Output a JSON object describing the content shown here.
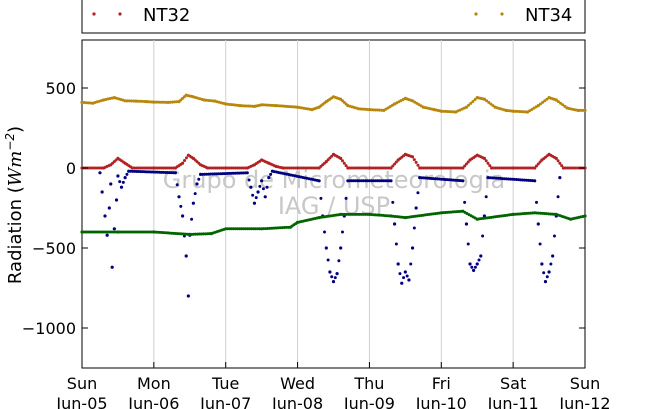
{
  "chart_data": {
    "type": "scatter",
    "title": "",
    "xlabel": "",
    "ylabel": "Radiation",
    "ylabel_unit": "Wm",
    "ylabel_unit_exp": "−2",
    "ylim": [
      -1250,
      800
    ],
    "xlim_days": [
      0,
      7
    ],
    "grid": "vertical",
    "legend_placement": "top",
    "watermark": [
      "Grupo de Micrometeorologia",
      "IAG / USP"
    ],
    "x_ticks": [
      {
        "day": 0,
        "line1": "Sun",
        "line2": "Jun-05"
      },
      {
        "day": 1,
        "line1": "Mon",
        "line2": "Jun-06"
      },
      {
        "day": 2,
        "line1": "Tue",
        "line2": "Jun-07"
      },
      {
        "day": 3,
        "line1": "Wed",
        "line2": "Jun-08"
      },
      {
        "day": 4,
        "line1": "Thu",
        "line2": "Jun-09"
      },
      {
        "day": 5,
        "line1": "Fri",
        "line2": "Jun-10"
      },
      {
        "day": 6,
        "line1": "Sat",
        "line2": "Jun-11"
      },
      {
        "day": 7,
        "line1": "Sun",
        "line2": "Jun-12"
      }
    ],
    "y_ticks": [
      500,
      0,
      -500,
      -1000
    ],
    "y_tick_labels": [
      "500",
      "0",
      "−500",
      "−1000"
    ],
    "legend": [
      {
        "name": "NT32",
        "color": "#b22222"
      },
      {
        "name": "NT34",
        "color": "#b8860b"
      }
    ],
    "series": [
      {
        "name": "NT34",
        "color": "#b8860b",
        "points": [
          [
            0,
            410
          ],
          [
            0.15,
            405
          ],
          [
            0.3,
            425
          ],
          [
            0.45,
            440
          ],
          [
            0.6,
            420
          ],
          [
            0.75,
            418
          ],
          [
            0.9,
            415
          ],
          [
            1.0,
            412
          ],
          [
            1.2,
            410
          ],
          [
            1.35,
            415
          ],
          [
            1.45,
            455
          ],
          [
            1.55,
            445
          ],
          [
            1.7,
            425
          ],
          [
            1.85,
            418
          ],
          [
            2.0,
            400
          ],
          [
            2.2,
            390
          ],
          [
            2.4,
            385
          ],
          [
            2.5,
            395
          ],
          [
            2.7,
            390
          ],
          [
            3.0,
            380
          ],
          [
            3.2,
            365
          ],
          [
            3.3,
            380
          ],
          [
            3.4,
            415
          ],
          [
            3.5,
            445
          ],
          [
            3.6,
            430
          ],
          [
            3.7,
            390
          ],
          [
            3.85,
            370
          ],
          [
            4.0,
            365
          ],
          [
            4.2,
            360
          ],
          [
            4.35,
            400
          ],
          [
            4.5,
            435
          ],
          [
            4.6,
            420
          ],
          [
            4.75,
            380
          ],
          [
            4.9,
            365
          ],
          [
            5.0,
            355
          ],
          [
            5.2,
            350
          ],
          [
            5.35,
            380
          ],
          [
            5.5,
            440
          ],
          [
            5.6,
            430
          ],
          [
            5.75,
            380
          ],
          [
            5.9,
            360
          ],
          [
            6.0,
            355
          ],
          [
            6.2,
            350
          ],
          [
            6.35,
            390
          ],
          [
            6.5,
            440
          ],
          [
            6.6,
            425
          ],
          [
            6.75,
            375
          ],
          [
            6.9,
            360
          ],
          [
            7.0,
            360
          ]
        ]
      },
      {
        "name": "NT32",
        "color": "#b22222",
        "points": [
          [
            0,
            0
          ],
          [
            0.3,
            0
          ],
          [
            0.4,
            20
          ],
          [
            0.5,
            60
          ],
          [
            0.6,
            30
          ],
          [
            0.7,
            0
          ],
          [
            1.0,
            0
          ],
          [
            1.3,
            0
          ],
          [
            1.4,
            30
          ],
          [
            1.48,
            80
          ],
          [
            1.55,
            60
          ],
          [
            1.65,
            20
          ],
          [
            1.75,
            0
          ],
          [
            2.0,
            0
          ],
          [
            2.3,
            0
          ],
          [
            2.4,
            20
          ],
          [
            2.5,
            50
          ],
          [
            2.6,
            30
          ],
          [
            2.7,
            10
          ],
          [
            2.8,
            0
          ],
          [
            3.0,
            0
          ],
          [
            3.3,
            0
          ],
          [
            3.4,
            40
          ],
          [
            3.5,
            85
          ],
          [
            3.6,
            60
          ],
          [
            3.7,
            0
          ],
          [
            4.0,
            0
          ],
          [
            4.3,
            0
          ],
          [
            4.4,
            50
          ],
          [
            4.5,
            85
          ],
          [
            4.6,
            70
          ],
          [
            4.7,
            0
          ],
          [
            5.0,
            0
          ],
          [
            5.3,
            0
          ],
          [
            5.4,
            50
          ],
          [
            5.5,
            80
          ],
          [
            5.6,
            60
          ],
          [
            5.7,
            0
          ],
          [
            6.0,
            0
          ],
          [
            6.3,
            0
          ],
          [
            6.4,
            50
          ],
          [
            6.5,
            85
          ],
          [
            6.6,
            60
          ],
          [
            6.7,
            0
          ],
          [
            7.0,
            0
          ]
        ]
      },
      {
        "name": "",
        "color": "#000080",
        "points": [
          [
            0.25,
            -30
          ],
          [
            0.28,
            -150
          ],
          [
            0.32,
            -300
          ],
          [
            0.35,
            -420
          ],
          [
            0.38,
            -250
          ],
          [
            0.4,
            -100
          ],
          [
            0.42,
            -620
          ],
          [
            0.45,
            -380
          ],
          [
            0.48,
            -200
          ],
          [
            0.5,
            -50
          ],
          [
            0.55,
            -120
          ],
          [
            0.6,
            -60
          ],
          [
            0.65,
            -20
          ],
          [
            1.3,
            -30
          ],
          [
            1.35,
            -180
          ],
          [
            1.4,
            -300
          ],
          [
            1.45,
            -550
          ],
          [
            1.48,
            -800
          ],
          [
            1.5,
            -420
          ],
          [
            1.55,
            -220
          ],
          [
            1.6,
            -100
          ],
          [
            1.65,
            -40
          ],
          [
            2.3,
            -30
          ],
          [
            2.35,
            -120
          ],
          [
            2.4,
            -220
          ],
          [
            2.45,
            -150
          ],
          [
            2.5,
            -80
          ],
          [
            2.55,
            -180
          ],
          [
            2.6,
            -60
          ],
          [
            2.65,
            -20
          ],
          [
            3.3,
            -80
          ],
          [
            3.35,
            -300
          ],
          [
            3.4,
            -500
          ],
          [
            3.45,
            -650
          ],
          [
            3.5,
            -710
          ],
          [
            3.55,
            -660
          ],
          [
            3.6,
            -500
          ],
          [
            3.65,
            -300
          ],
          [
            3.7,
            -80
          ],
          [
            4.3,
            -80
          ],
          [
            4.35,
            -350
          ],
          [
            4.4,
            -600
          ],
          [
            4.45,
            -720
          ],
          [
            4.5,
            -650
          ],
          [
            4.55,
            -700
          ],
          [
            4.6,
            -500
          ],
          [
            4.65,
            -250
          ],
          [
            4.7,
            -60
          ],
          [
            5.3,
            -80
          ],
          [
            5.35,
            -350
          ],
          [
            5.4,
            -600
          ],
          [
            5.45,
            -640
          ],
          [
            5.5,
            -600
          ],
          [
            5.55,
            -550
          ],
          [
            5.6,
            -300
          ],
          [
            5.65,
            -60
          ],
          [
            6.3,
            -80
          ],
          [
            6.35,
            -350
          ],
          [
            6.4,
            -600
          ],
          [
            6.45,
            -710
          ],
          [
            6.5,
            -650
          ],
          [
            6.55,
            -550
          ],
          [
            6.6,
            -300
          ],
          [
            6.65,
            -60
          ]
        ]
      },
      {
        "name": "",
        "color": "#006400",
        "points": [
          [
            0,
            -400
          ],
          [
            0.5,
            -400
          ],
          [
            1.0,
            -400
          ],
          [
            1.5,
            -415
          ],
          [
            1.8,
            -410
          ],
          [
            2.0,
            -380
          ],
          [
            2.5,
            -380
          ],
          [
            2.9,
            -370
          ],
          [
            3.0,
            -340
          ],
          [
            3.3,
            -310
          ],
          [
            3.6,
            -290
          ],
          [
            4.0,
            -290
          ],
          [
            4.3,
            -300
          ],
          [
            4.5,
            -310
          ],
          [
            5.0,
            -280
          ],
          [
            5.3,
            -270
          ],
          [
            5.5,
            -320
          ],
          [
            6.0,
            -290
          ],
          [
            6.3,
            -280
          ],
          [
            6.6,
            -290
          ],
          [
            6.8,
            -320
          ],
          [
            7.0,
            -300
          ]
        ]
      }
    ]
  }
}
